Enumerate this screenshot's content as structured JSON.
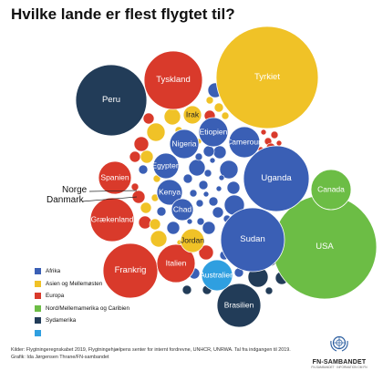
{
  "title": "Hvilke lande er flest flygtet til?",
  "colors": {
    "Afrika": "#3a5fb5",
    "Asien og Mellemøsten": "#f0c227",
    "Europa": "#d93a2b",
    "Nord/Mellemamerika og Caribien": "#6cbd45",
    "Sydamerika": "#223c58",
    "Oceanien": "#2f9fe0"
  },
  "legend": [
    {
      "label": "Afrika",
      "color": "#3a5fb5"
    },
    {
      "label": "Asien og Mellemøsten",
      "color": "#f0c227"
    },
    {
      "label": "Europa",
      "color": "#d93a2b"
    },
    {
      "label": "Nord/Mellemamerika og Caribien",
      "color": "#6cbd45"
    },
    {
      "label": "Sydamerika",
      "color": "#223c58"
    },
    {
      "label": "",
      "color": "#2f9fe0"
    }
  ],
  "chart_data": {
    "type": "bubble",
    "title": "Hvilke lande er flest flygtet til?",
    "labeled_bubbles": [
      {
        "label": "Tyrkiet",
        "region": "Asien og Mellemøsten"
      },
      {
        "label": "USA",
        "region": "Nord/Mellemamerika og Caribien"
      },
      {
        "label": "Uganda",
        "region": "Afrika"
      },
      {
        "label": "Sudan",
        "region": "Afrika"
      },
      {
        "label": "Peru",
        "region": "Sydamerika"
      },
      {
        "label": "Tyskland",
        "region": "Europa"
      },
      {
        "label": "Frankrig",
        "region": "Europa"
      },
      {
        "label": "Canada",
        "region": "Nord/Mellemamerika og Caribien"
      },
      {
        "label": "Grækenland",
        "region": "Europa"
      },
      {
        "label": "Italien",
        "region": "Europa"
      },
      {
        "label": "Brasilien",
        "region": "Sydamerika"
      },
      {
        "label": "Spanien",
        "region": "Europa"
      },
      {
        "label": "Cameroun",
        "region": "Afrika"
      },
      {
        "label": "Etiopien",
        "region": "Afrika"
      },
      {
        "label": "Nigeria",
        "region": "Afrika"
      },
      {
        "label": "Egypten",
        "region": "Afrika"
      },
      {
        "label": "Kenya",
        "region": "Afrika"
      },
      {
        "label": "Chad",
        "region": "Afrika"
      },
      {
        "label": "Jordan",
        "region": "Asien og Mellemøsten"
      },
      {
        "label": "Irak",
        "region": "Asien og Mellemøsten"
      },
      {
        "label": "Australien",
        "region": "Oceanien"
      }
    ],
    "callouts": [
      {
        "label": "Norge"
      },
      {
        "label": "Danmark"
      }
    ]
  },
  "sources": [
    "Kilder: Flygtningeregnskabet 2019, Flygtningehjælpens senter for internt fordrevne, UNHCR, UNRWA. Tal fra indgangen til 2019.",
    "Grafik: Ida Jørgensen Thrane/FN-sambandet"
  ],
  "logo": {
    "name": "FN-SAMBANDET",
    "subtitle": "FN-SAMBANDET · INFORMATION OM FN"
  }
}
